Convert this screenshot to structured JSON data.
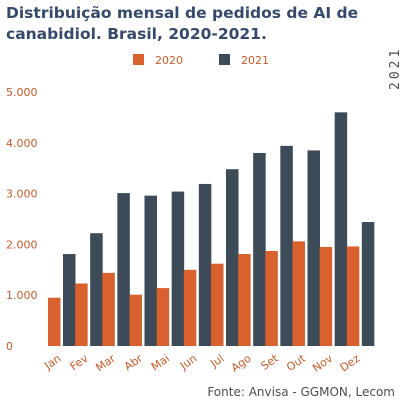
{
  "title": "Distribuição mensal de pedidos de AI de canabidiol. Brasil, 2020-2021.",
  "source": "Fonte: Anvisa - GGMON, Lecom",
  "side_label": "2021",
  "colors": {
    "s2020": "#d9612e",
    "s2021": "#3d4a57",
    "axis_text": "#c85a28",
    "title": "#35496b"
  },
  "chart_data": {
    "type": "bar",
    "title": "Distribuição mensal de pedidos de AI de canabidiol. Brasil, 2020-2021.",
    "xlabel": "",
    "ylabel": "",
    "categories": [
      "Jan",
      "Fev",
      "Mar",
      "Abr",
      "Mai",
      "Jun",
      "Jul",
      "Ago",
      "Set",
      "Out",
      "Nov",
      "Dez"
    ],
    "series": [
      {
        "name": "2020",
        "values": [
          950,
          1230,
          1440,
          1010,
          1140,
          1500,
          1620,
          1810,
          1870,
          2060,
          1950,
          1960
        ]
      },
      {
        "name": "2021",
        "values": [
          1810,
          2220,
          3010,
          2960,
          3040,
          3190,
          3480,
          3800,
          3940,
          3850,
          4600,
          2440
        ]
      }
    ],
    "ylim": [
      0,
      5000
    ],
    "yticks": [
      "0",
      "1.000",
      "2.000",
      "3.000",
      "4.000",
      "5.000"
    ],
    "grid": false,
    "legend": "top"
  }
}
